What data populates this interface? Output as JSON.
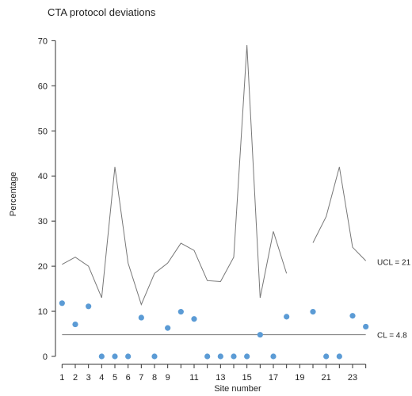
{
  "chart_data": {
    "type": "scatter",
    "title": "CTA protocol deviations",
    "xlabel": "Site number",
    "ylabel": "Percentage",
    "ylim": [
      0,
      72
    ],
    "xlim": [
      0.5,
      24.5
    ],
    "x_ticks": [
      1,
      2,
      3,
      4,
      5,
      6,
      7,
      8,
      9,
      11,
      13,
      15,
      17,
      19,
      21,
      23
    ],
    "y_ticks": [
      0,
      10,
      20,
      30,
      40,
      50,
      60,
      70
    ],
    "grid": false,
    "colors": {
      "points": "#5b9bd5",
      "lines": "#777777"
    },
    "series": [
      {
        "type": "points",
        "x": [
          1,
          2,
          3,
          4,
          5,
          6,
          7,
          8,
          9,
          10,
          11,
          12,
          13,
          14,
          15,
          16,
          17,
          18,
          20,
          21,
          22,
          23,
          24
        ],
        "y": [
          11.8,
          7.1,
          11.1,
          0,
          0,
          0,
          8.6,
          0,
          6.3,
          9.9,
          8.3,
          0,
          0,
          0,
          0,
          4.8,
          0,
          8.8,
          9.9,
          0,
          0,
          9.0,
          6.6
        ]
      },
      {
        "type": "ucl-line",
        "segments": [
          {
            "x": [
              1,
              2,
              3,
              4,
              5,
              6,
              7,
              8,
              9,
              10,
              11,
              12,
              13,
              14,
              15,
              16,
              17,
              18
            ],
            "y": [
              20.4,
              22,
              20,
              13,
              42,
              20.7,
              11.5,
              18.4,
              20.7,
              25.1,
              23.5,
              16.8,
              16.6,
              22,
              69,
              13,
              27.7,
              18.4
            ]
          },
          {
            "x": [
              20,
              21,
              22,
              23,
              24
            ],
            "y": [
              25.2,
              31,
              42,
              24.2,
              21.2
            ]
          }
        ]
      },
      {
        "type": "center-line",
        "x": [
          1,
          24
        ],
        "y": [
          4.8,
          4.8
        ]
      }
    ],
    "annotations": [
      {
        "text": "UCL = 21",
        "y": 21
      },
      {
        "text": "CL = 4.8",
        "y": 4.8
      }
    ]
  }
}
